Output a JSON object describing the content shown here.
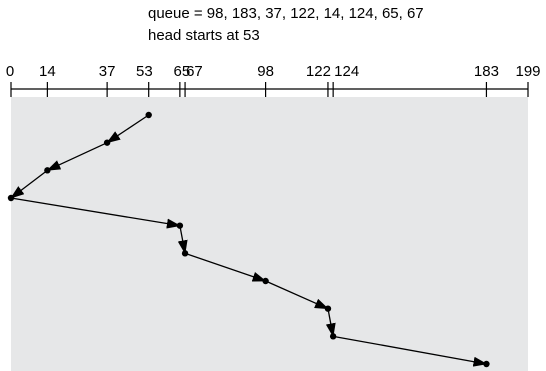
{
  "caption": {
    "queue_line": "queue = 98, 183, 37, 122, 14, 124, 65, 67",
    "head_line": "head starts at 53"
  },
  "axis": {
    "min": 0,
    "max": 199,
    "tick_values": [
      0,
      14,
      37,
      53,
      65,
      67,
      98,
      122,
      124,
      183,
      199
    ],
    "tick_labels": [
      "0",
      "14",
      "37",
      "53",
      "65",
      "67",
      "98",
      "122",
      "124",
      "183",
      "199"
    ]
  },
  "seek_sequence": [
    53,
    37,
    14,
    0,
    65,
    67,
    98,
    122,
    124,
    183
  ],
  "colors": {
    "panel_fill": "#e6e7e8",
    "line": "#000000",
    "point": "#000000"
  }
}
